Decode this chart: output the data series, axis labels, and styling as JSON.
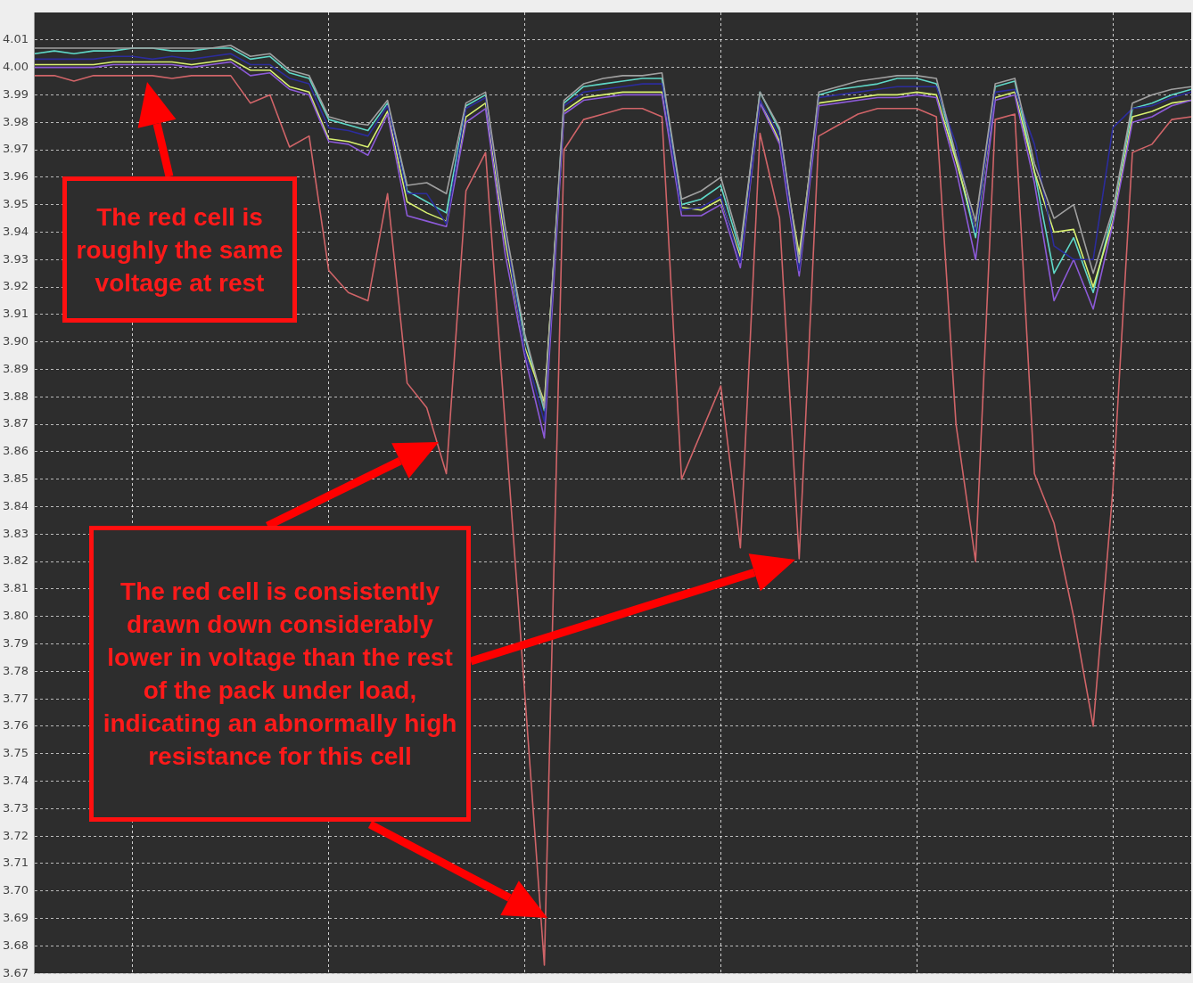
{
  "chart_data": {
    "type": "line",
    "categories": [
      null,
      null,
      null,
      null,
      null,
      null,
      null,
      null,
      null,
      null,
      null,
      null,
      null,
      null,
      null,
      null,
      null,
      null,
      null,
      null,
      null,
      null,
      null,
      null,
      null,
      null,
      null,
      null,
      null,
      null,
      null,
      null,
      null,
      null,
      null,
      null,
      null,
      null,
      null,
      null,
      null,
      null,
      null,
      null,
      null,
      null,
      null,
      null,
      null,
      null,
      null,
      null,
      null,
      null,
      null,
      null,
      null,
      null,
      null,
      null
    ],
    "series": [
      {
        "color": "#a0a0a0",
        "values": [
          4.007,
          4.007,
          4.007,
          4.007,
          4.007,
          4.007,
          4.007,
          4.007,
          4.007,
          4.007,
          4.008,
          4.004,
          4.005,
          3.999,
          3.997,
          3.982,
          3.98,
          3.979,
          3.988,
          3.957,
          3.958,
          3.954,
          3.987,
          3.991,
          3.942,
          3.903,
          3.876,
          3.988,
          3.994,
          3.996,
          3.997,
          3.997,
          3.998,
          3.952,
          3.955,
          3.96,
          3.935,
          3.991,
          3.978,
          3.929,
          3.991,
          3.993,
          3.995,
          3.996,
          3.997,
          3.997,
          3.996,
          3.968,
          3.944,
          3.994,
          3.996,
          3.965,
          3.945,
          3.95,
          3.925,
          3.948,
          3.987,
          3.99,
          3.992,
          3.993
        ]
      },
      {
        "color": "#2c2c9c",
        "values": [
          4.003,
          4.003,
          4.003,
          4.003,
          4.004,
          4.004,
          4.003,
          4.004,
          4.003,
          4.004,
          4.005,
          4.001,
          4.001,
          3.996,
          3.994,
          3.978,
          3.977,
          3.975,
          3.986,
          3.954,
          3.954,
          3.943,
          3.985,
          3.989,
          3.94,
          3.897,
          3.871,
          3.986,
          3.991,
          3.992,
          3.993,
          3.994,
          3.994,
          3.948,
          3.949,
          3.953,
          3.929,
          3.988,
          3.975,
          3.926,
          3.989,
          3.99,
          3.991,
          3.992,
          3.993,
          3.993,
          3.993,
          3.972,
          3.94,
          3.991,
          3.992,
          3.972,
          3.935,
          3.93,
          3.93,
          3.978,
          3.985,
          3.986,
          3.989,
          3.991
        ]
      },
      {
        "color": "#8c5ad8",
        "values": [
          4.0,
          4.0,
          4.0,
          4.0,
          4.001,
          4.001,
          4.001,
          4.001,
          4.0,
          4.001,
          4.002,
          3.997,
          3.998,
          3.992,
          3.99,
          3.973,
          3.972,
          3.968,
          3.983,
          3.946,
          3.944,
          3.942,
          3.98,
          3.985,
          3.932,
          3.895,
          3.865,
          3.983,
          3.988,
          3.989,
          3.99,
          3.99,
          3.99,
          3.946,
          3.946,
          3.95,
          3.927,
          3.987,
          3.972,
          3.924,
          3.986,
          3.987,
          3.988,
          3.989,
          3.989,
          3.99,
          3.989,
          3.963,
          3.93,
          3.988,
          3.99,
          3.958,
          3.915,
          3.93,
          3.912,
          3.943,
          3.98,
          3.982,
          3.986,
          3.988
        ]
      },
      {
        "color": "#d8f070",
        "values": [
          4.001,
          4.001,
          4.001,
          4.001,
          4.002,
          4.002,
          4.002,
          4.002,
          4.001,
          4.002,
          4.003,
          3.999,
          3.999,
          3.993,
          3.991,
          3.974,
          3.973,
          3.971,
          3.984,
          3.951,
          3.947,
          3.944,
          3.982,
          3.987,
          3.937,
          3.898,
          3.878,
          3.984,
          3.989,
          3.99,
          3.991,
          3.991,
          3.991,
          3.949,
          3.948,
          3.952,
          3.931,
          3.988,
          3.973,
          3.932,
          3.987,
          3.988,
          3.989,
          3.99,
          3.99,
          3.991,
          3.99,
          3.966,
          3.941,
          3.989,
          3.991,
          3.962,
          3.94,
          3.941,
          3.92,
          3.944,
          3.982,
          3.984,
          3.987,
          3.988
        ]
      },
      {
        "color": "#5fd8c8",
        "values": [
          4.005,
          4.006,
          4.005,
          4.006,
          4.006,
          4.007,
          4.007,
          4.006,
          4.006,
          4.007,
          4.007,
          4.003,
          4.004,
          3.998,
          3.996,
          3.981,
          3.979,
          3.977,
          3.987,
          3.955,
          3.951,
          3.947,
          3.986,
          3.99,
          3.938,
          3.902,
          3.875,
          3.987,
          3.993,
          3.994,
          3.995,
          3.996,
          3.996,
          3.95,
          3.952,
          3.957,
          3.933,
          3.991,
          3.977,
          3.928,
          3.99,
          3.992,
          3.993,
          3.994,
          3.996,
          3.996,
          3.994,
          3.967,
          3.938,
          3.993,
          3.995,
          3.962,
          3.925,
          3.938,
          3.918,
          3.947,
          3.985,
          3.987,
          3.99,
          3.992
        ]
      },
      {
        "color": "#d06468",
        "values": [
          3.997,
          3.997,
          3.995,
          3.997,
          3.997,
          3.997,
          3.997,
          3.996,
          3.997,
          3.997,
          3.997,
          3.987,
          3.99,
          3.971,
          3.975,
          3.926,
          3.918,
          3.915,
          3.954,
          3.885,
          3.876,
          3.852,
          3.955,
          3.969,
          3.87,
          3.772,
          3.673,
          3.97,
          3.981,
          3.983,
          3.985,
          3.985,
          3.982,
          3.85,
          3.867,
          3.884,
          3.825,
          3.976,
          3.945,
          3.821,
          3.975,
          3.979,
          3.983,
          3.985,
          3.985,
          3.985,
          3.982,
          3.87,
          3.82,
          3.981,
          3.983,
          3.852,
          3.834,
          3.8,
          3.76,
          3.846,
          3.969,
          3.972,
          3.981,
          3.982
        ]
      }
    ],
    "ylim": [
      3.67,
      4.02
    ],
    "yticks": [
      {
        "value": 3.67,
        "label": "3.67"
      },
      3.68,
      3.69,
      {
        "value": 3.7,
        "label": "3.70"
      },
      3.71,
      3.72,
      3.73,
      3.74,
      3.75,
      3.76,
      3.77,
      3.78,
      3.79,
      {
        "value": 3.8,
        "label": "3.80"
      },
      3.81,
      3.82,
      3.83,
      3.84,
      3.85,
      3.86,
      3.87,
      3.88,
      3.89,
      {
        "value": 3.9,
        "label": "3.90"
      },
      3.91,
      3.92,
      3.93,
      3.94,
      3.95,
      3.96,
      3.97,
      3.98,
      3.99,
      {
        "value": 4,
        "label": "4.00"
      },
      4.01
    ],
    "grid": true,
    "tick_labels": "y",
    "marker": "none",
    "annotations": [
      "The red cell is roughly the same voltage at rest",
      "The red cell is consistently drawn down considerably lower in voltage than the rest of the pack under load, indicating an abnormally high resistance for this cell"
    ]
  }
}
